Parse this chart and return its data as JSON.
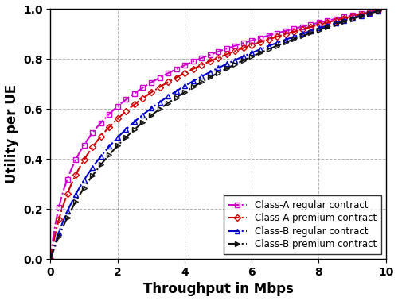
{
  "title": "",
  "xlabel": "Throughput in Mbps",
  "ylabel": "Utility per UE",
  "xlim": [
    0,
    10
  ],
  "ylim": [
    0,
    1
  ],
  "xticks": [
    0,
    2,
    4,
    6,
    8,
    10
  ],
  "yticks": [
    0,
    0.2,
    0.4,
    0.6,
    0.8,
    1.0
  ],
  "series": [
    {
      "label": "Class-A regular contract",
      "color": "#CC00CC",
      "linestyle": "-.",
      "marker": "s",
      "alpha": 1.5,
      "beta": 0.4
    },
    {
      "label": "Class-A premium contract",
      "color": "#CC0000",
      "linestyle": "-.",
      "marker": "D",
      "alpha": 1.2,
      "beta": 0.7
    },
    {
      "label": "Class-B regular contract",
      "color": "#0000CC",
      "linestyle": "-.",
      "marker": "^",
      "alpha": 0.75,
      "beta": 1.5
    },
    {
      "label": "Class-B premium contract",
      "color": "#111111",
      "linestyle": "-.",
      "marker": ">",
      "alpha": 0.65,
      "beta": 1.9
    }
  ],
  "background_color": "#ffffff",
  "grid": true,
  "legend_loc": "lower right",
  "legend_fontsize": 8.5,
  "axis_fontsize": 12,
  "tick_fontsize": 10,
  "linewidth": 1.5,
  "markersize": 4,
  "marker_every": 25
}
